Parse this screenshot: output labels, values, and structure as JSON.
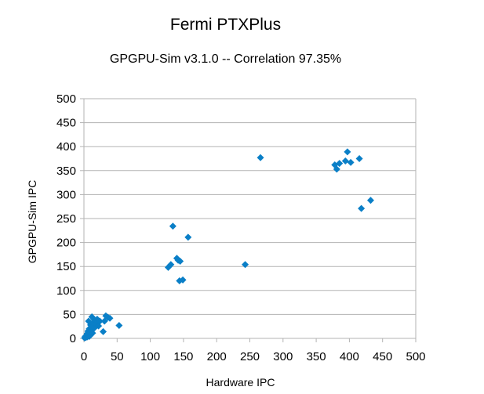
{
  "chart_data": {
    "type": "scatter",
    "title": "Fermi PTXPlus",
    "subtitle": "GPGPU-Sim v3.1.0 -- Correlation 97.35%",
    "xlabel": "Hardware IPC",
    "ylabel": "GPGPU-Sim IPC",
    "xlim": [
      0,
      500
    ],
    "ylim": [
      0,
      500
    ],
    "xticks": [
      0,
      50,
      100,
      150,
      200,
      250,
      300,
      350,
      400,
      450,
      500
    ],
    "yticks": [
      0,
      50,
      100,
      150,
      200,
      250,
      300,
      350,
      400,
      450,
      500
    ],
    "grid": "horizontal",
    "legend": "none",
    "marker": "diamond",
    "color": "#0a7fc7",
    "points": [
      {
        "x": 1,
        "y": 1
      },
      {
        "x": 2,
        "y": 4
      },
      {
        "x": 3,
        "y": 2
      },
      {
        "x": 4,
        "y": 6
      },
      {
        "x": 5,
        "y": 3
      },
      {
        "x": 5,
        "y": 10
      },
      {
        "x": 6,
        "y": 5
      },
      {
        "x": 6,
        "y": 15
      },
      {
        "x": 7,
        "y": 8
      },
      {
        "x": 8,
        "y": 4
      },
      {
        "x": 8,
        "y": 20
      },
      {
        "x": 9,
        "y": 12
      },
      {
        "x": 10,
        "y": 7
      },
      {
        "x": 10,
        "y": 28
      },
      {
        "x": 11,
        "y": 16
      },
      {
        "x": 12,
        "y": 24
      },
      {
        "x": 13,
        "y": 11
      },
      {
        "x": 14,
        "y": 32
      },
      {
        "x": 15,
        "y": 40
      },
      {
        "x": 16,
        "y": 22
      },
      {
        "x": 18,
        "y": 30
      },
      {
        "x": 20,
        "y": 40
      },
      {
        "x": 21,
        "y": 34
      },
      {
        "x": 22,
        "y": 26
      },
      {
        "x": 24,
        "y": 36
      },
      {
        "x": 7,
        "y": 36
      },
      {
        "x": 12,
        "y": 45
      },
      {
        "x": 29,
        "y": 14
      },
      {
        "x": 31,
        "y": 36
      },
      {
        "x": 33,
        "y": 47
      },
      {
        "x": 36,
        "y": 44
      },
      {
        "x": 39,
        "y": 42
      },
      {
        "x": 53,
        "y": 27
      },
      {
        "x": 127,
        "y": 148
      },
      {
        "x": 131,
        "y": 154
      },
      {
        "x": 134,
        "y": 234
      },
      {
        "x": 140,
        "y": 167
      },
      {
        "x": 142,
        "y": 163
      },
      {
        "x": 145,
        "y": 161
      },
      {
        "x": 144,
        "y": 120
      },
      {
        "x": 149,
        "y": 122
      },
      {
        "x": 157,
        "y": 211
      },
      {
        "x": 243,
        "y": 154
      },
      {
        "x": 266,
        "y": 377
      },
      {
        "x": 378,
        "y": 362
      },
      {
        "x": 381,
        "y": 353
      },
      {
        "x": 385,
        "y": 365
      },
      {
        "x": 394,
        "y": 370
      },
      {
        "x": 397,
        "y": 389
      },
      {
        "x": 402,
        "y": 367
      },
      {
        "x": 415,
        "y": 375
      },
      {
        "x": 418,
        "y": 271
      },
      {
        "x": 432,
        "y": 288
      }
    ]
  }
}
